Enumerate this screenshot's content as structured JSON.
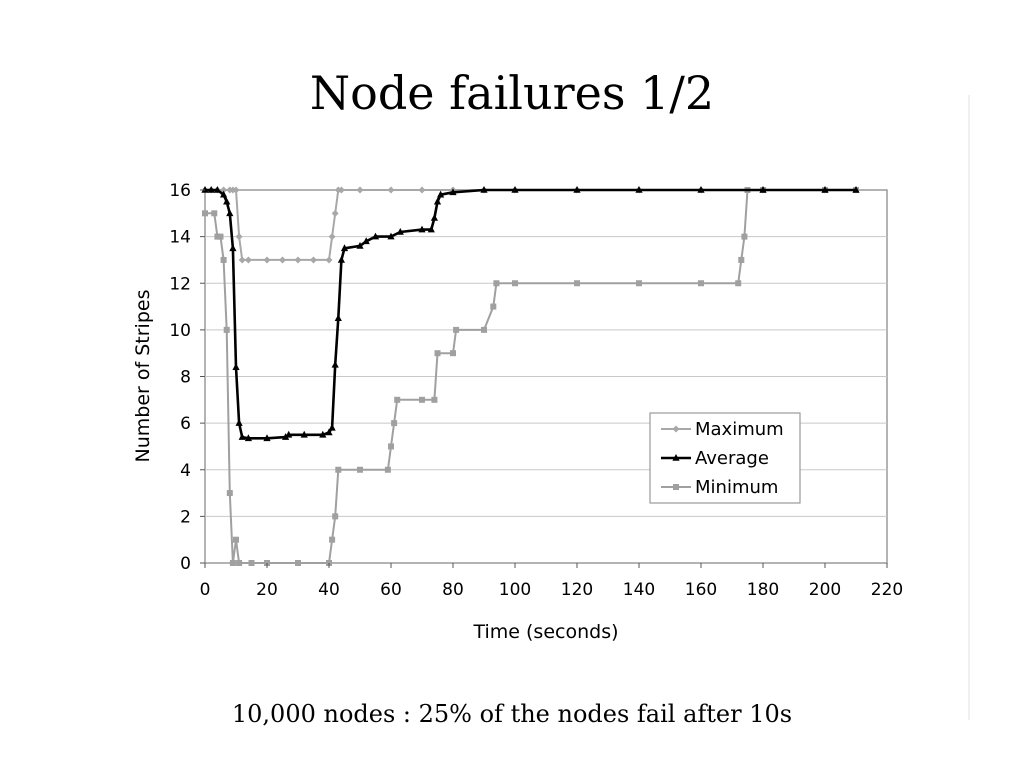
{
  "slide": {
    "title": "Node failures 1/2",
    "caption": "10,000 nodes : 25% of the nodes fail after 10s"
  },
  "chart_data": {
    "type": "line",
    "xlabel": "Time (seconds)",
    "ylabel": "Number of Stripes",
    "xlim": [
      0,
      220
    ],
    "ylim": [
      0,
      16
    ],
    "xticks": [
      0,
      20,
      40,
      60,
      80,
      100,
      120,
      140,
      160,
      180,
      200,
      220
    ],
    "yticks": [
      0,
      2,
      4,
      6,
      8,
      10,
      12,
      14,
      16
    ],
    "grid": "horizontal",
    "legend": "right",
    "series": [
      {
        "name": "Maximum",
        "color": "#a8a8a8",
        "marker": "diamond",
        "points": [
          [
            0,
            16
          ],
          [
            2,
            16
          ],
          [
            4,
            16
          ],
          [
            6,
            16
          ],
          [
            8,
            16
          ],
          [
            9,
            16
          ],
          [
            10,
            16
          ],
          [
            11,
            14
          ],
          [
            12,
            13
          ],
          [
            14,
            13
          ],
          [
            20,
            13
          ],
          [
            25,
            13
          ],
          [
            30,
            13
          ],
          [
            35,
            13
          ],
          [
            40,
            13
          ],
          [
            41,
            14
          ],
          [
            42,
            15
          ],
          [
            43,
            16
          ],
          [
            44,
            16
          ],
          [
            50,
            16
          ],
          [
            60,
            16
          ],
          [
            70,
            16
          ],
          [
            80,
            16
          ],
          [
            90,
            16
          ],
          [
            100,
            16
          ],
          [
            120,
            16
          ],
          [
            140,
            16
          ],
          [
            160,
            16
          ],
          [
            180,
            16
          ],
          [
            200,
            16
          ],
          [
            210,
            16
          ]
        ]
      },
      {
        "name": "Average",
        "color": "#000000",
        "marker": "triangle",
        "points": [
          [
            0,
            16
          ],
          [
            2,
            16
          ],
          [
            4,
            16
          ],
          [
            6,
            15.8
          ],
          [
            7,
            15.5
          ],
          [
            8,
            15
          ],
          [
            9,
            13.5
          ],
          [
            10,
            8.4
          ],
          [
            11,
            6
          ],
          [
            12,
            5.4
          ],
          [
            14,
            5.35
          ],
          [
            20,
            5.35
          ],
          [
            26,
            5.4
          ],
          [
            27,
            5.5
          ],
          [
            32,
            5.5
          ],
          [
            38,
            5.5
          ],
          [
            40,
            5.6
          ],
          [
            41,
            5.8
          ],
          [
            42,
            8.5
          ],
          [
            43,
            10.5
          ],
          [
            44,
            13
          ],
          [
            45,
            13.5
          ],
          [
            50,
            13.6
          ],
          [
            52,
            13.8
          ],
          [
            55,
            14
          ],
          [
            60,
            14
          ],
          [
            63,
            14.2
          ],
          [
            70,
            14.3
          ],
          [
            73,
            14.3
          ],
          [
            74,
            14.8
          ],
          [
            75,
            15.5
          ],
          [
            76,
            15.8
          ],
          [
            80,
            15.9
          ],
          [
            90,
            16
          ],
          [
            100,
            16
          ],
          [
            120,
            16
          ],
          [
            140,
            16
          ],
          [
            160,
            16
          ],
          [
            180,
            16
          ],
          [
            200,
            16
          ],
          [
            210,
            16
          ]
        ]
      },
      {
        "name": "Minimum",
        "color": "#a0a0a0",
        "marker": "square",
        "points": [
          [
            0,
            15
          ],
          [
            3,
            15
          ],
          [
            4,
            14
          ],
          [
            5,
            14
          ],
          [
            6,
            13
          ],
          [
            7,
            10
          ],
          [
            8,
            3
          ],
          [
            9,
            0
          ],
          [
            10,
            1
          ],
          [
            11,
            0
          ],
          [
            15,
            0
          ],
          [
            20,
            0
          ],
          [
            30,
            0
          ],
          [
            40,
            0
          ],
          [
            41,
            1
          ],
          [
            42,
            2
          ],
          [
            43,
            4
          ],
          [
            50,
            4
          ],
          [
            59,
            4
          ],
          [
            60,
            5
          ],
          [
            61,
            6
          ],
          [
            62,
            7
          ],
          [
            70,
            7
          ],
          [
            74,
            7
          ],
          [
            75,
            9
          ],
          [
            80,
            9
          ],
          [
            81,
            10
          ],
          [
            90,
            10
          ],
          [
            93,
            11
          ],
          [
            94,
            12
          ],
          [
            100,
            12
          ],
          [
            120,
            12
          ],
          [
            140,
            12
          ],
          [
            160,
            12
          ],
          [
            172,
            12
          ],
          [
            173,
            13
          ],
          [
            174,
            14
          ],
          [
            175,
            16
          ],
          [
            180,
            16
          ],
          [
            200,
            16
          ],
          [
            210,
            16
          ]
        ]
      }
    ]
  }
}
